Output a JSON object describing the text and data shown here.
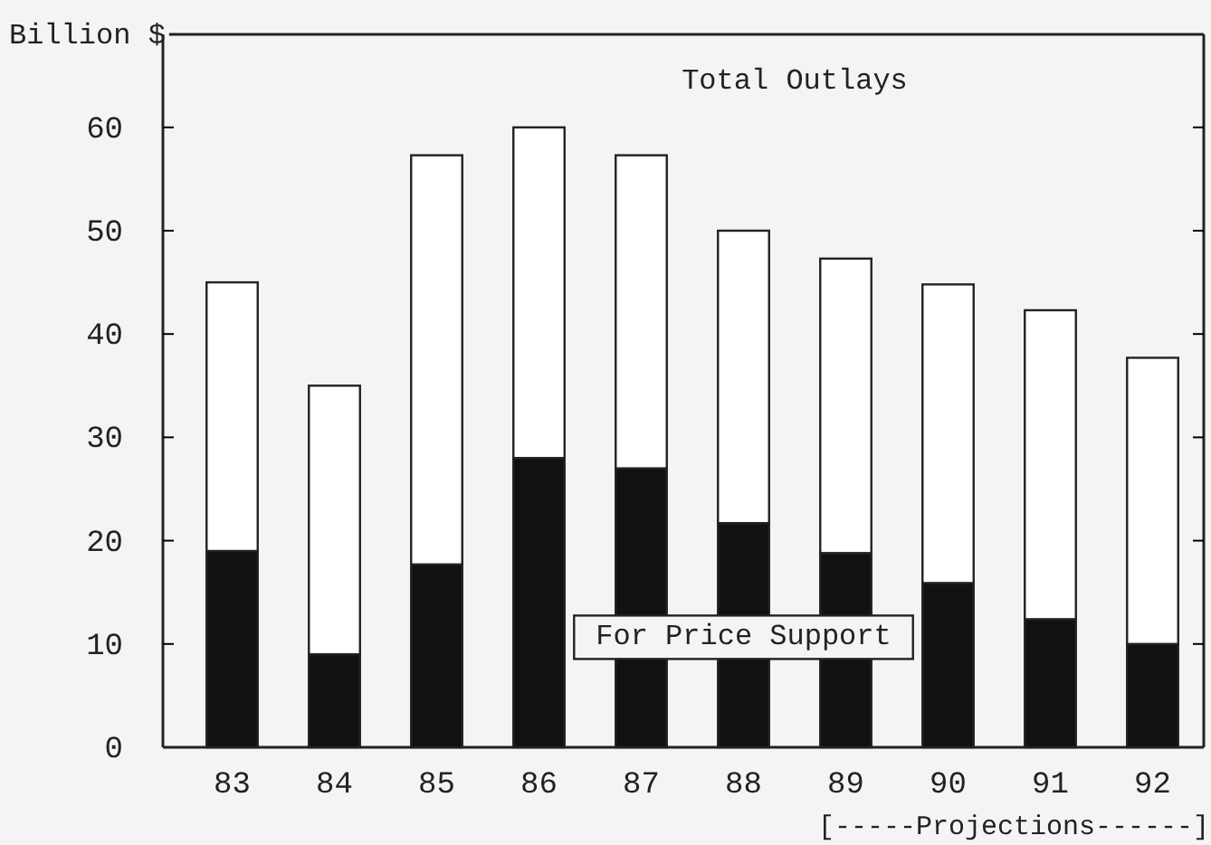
{
  "chart_data": {
    "type": "bar",
    "stacked": true,
    "ylabel": "Billion $",
    "categories": [
      "83",
      "84",
      "85",
      "86",
      "87",
      "88",
      "89",
      "90",
      "91",
      "92"
    ],
    "series": [
      {
        "name": "For Price Support",
        "color": "#111111",
        "values": [
          19,
          9,
          17.7,
          28,
          27,
          21.7,
          18.8,
          15.9,
          12.4,
          10
        ]
      },
      {
        "name": "Total Outlays",
        "color": "#ffffff",
        "values": [
          26,
          26,
          39.6,
          32,
          30.3,
          28.3,
          28.5,
          28.9,
          29.9,
          27.7
        ]
      }
    ],
    "ylim": [
      0,
      69
    ],
    "yticks": [
      0,
      10,
      20,
      30,
      40,
      50,
      60
    ],
    "annotations": [
      "[-----Projections------]"
    ]
  }
}
